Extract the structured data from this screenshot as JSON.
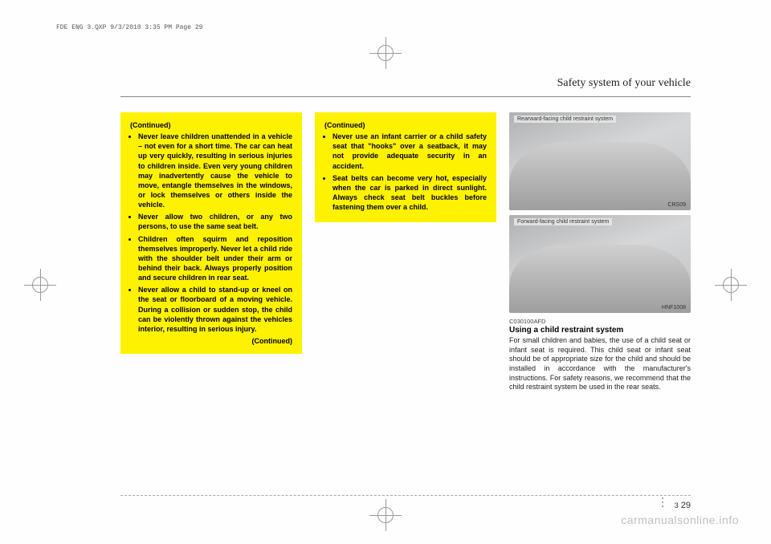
{
  "meta_header": "FDE ENG 3.QXP  9/3/2010  3:35 PM  Page 29",
  "section_title": "Safety system of your vehicle",
  "warning1": {
    "head": "(Continued)",
    "items": [
      "Never leave children unattended in a vehicle – not even for a short time. The car can heat up very quickly, resulting in serious injuries to children inside. Even very young children may inadvertently cause the vehicle to move, entangle themselves in the windows, or lock themselves or others inside the vehicle.",
      "Never allow two children, or any two persons, to use the same seat belt.",
      "Children often squirm and reposition themselves improperly. Never let a child ride with the shoulder belt under their arm or behind their back. Always properly position and secure children in rear seat.",
      "Never allow a child to stand-up or kneel on the seat or floorboard of a moving vehicle. During a collision or sudden stop, the child can be violently thrown against the vehicles interior, resulting in serious injury."
    ],
    "cont": "(Continued)"
  },
  "warning2": {
    "head": "(Continued)",
    "items": [
      "Never use an infant carrier or a child safety seat that \"hooks\" over a seatback, it may not provide adequate security in an accident.",
      "Seat belts can become very hot, especially when the car is parked in direct sunlight. Always check seat belt buckles before fastening them over a child."
    ]
  },
  "img1": {
    "top_label": "Rearward-facing child restraint system",
    "bot_label": "CRS09"
  },
  "img2": {
    "top_label": "Forward-facing child restraint system",
    "bot_label": "HNF1008"
  },
  "code": "C030100AFD",
  "subhead": "Using a child restraint system",
  "body": "For small children and babies, the use of a child seat or infant seat is required. This child seat or infant seat should be of appropriate size for the child and should be installed in accordance with the manufacturer's instructions. For safety reasons, we recommend that the child restraint system be used in the rear seats.",
  "page": {
    "chapter": "3",
    "num": "29"
  },
  "watermark": "carmanualsonline.info",
  "colors": {
    "warning_bg": "#fff200",
    "text": "#222222",
    "rule": "#888888"
  }
}
